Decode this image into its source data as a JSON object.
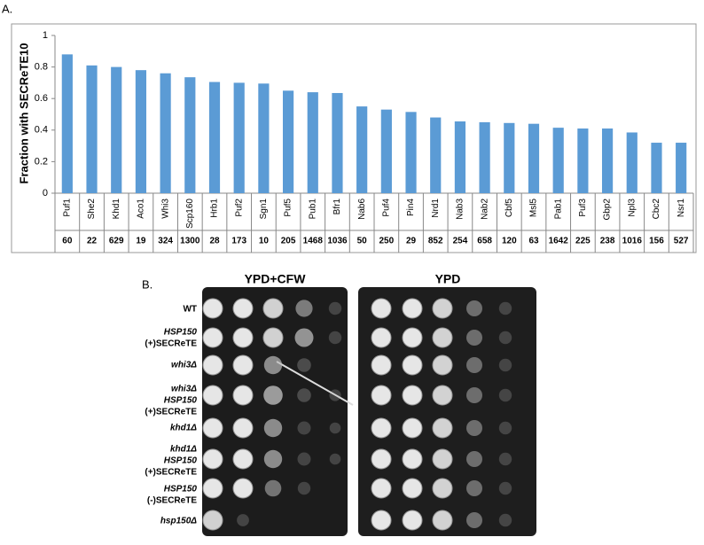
{
  "panel_a_label": "A.",
  "chart_data": {
    "type": "bar",
    "y_label": "Fraction with SECReTE10",
    "categories": [
      "Puf1",
      "She2",
      "Khd1",
      "Aco1",
      "Whi3",
      "Scp160",
      "Hrb1",
      "Puf2",
      "Sgn1",
      "Puf5",
      "Pub1",
      "Bfr1",
      "Nab6",
      "Puf4",
      "Pin4",
      "Nrd1",
      "Nab3",
      "Nab2",
      "Cbf5",
      "Msl5",
      "Pab1",
      "Puf3",
      "Gbp2",
      "Npl3",
      "Cbc2",
      "Nsr1"
    ],
    "values": [
      0.88,
      0.81,
      0.8,
      0.78,
      0.76,
      0.735,
      0.705,
      0.7,
      0.695,
      0.65,
      0.64,
      0.635,
      0.55,
      0.53,
      0.515,
      0.48,
      0.455,
      0.45,
      0.445,
      0.44,
      0.415,
      0.41,
      0.41,
      0.385,
      0.32,
      0.32
    ],
    "counts": [
      60,
      22,
      629,
      19,
      324,
      1300,
      28,
      173,
      10,
      205,
      1468,
      1036,
      50,
      250,
      29,
      852,
      254,
      658,
      120,
      63,
      1642,
      225,
      238,
      1016,
      156,
      527
    ],
    "color": "#5b9bd5",
    "ylim": [
      0,
      1
    ],
    "yticks": [
      0,
      0.2,
      0.4,
      0.6,
      0.8,
      1
    ],
    "grid": false
  },
  "panel_b": {
    "label": "B.",
    "plates": [
      "YPD+CFW",
      "YPD"
    ],
    "strains": [
      [
        "WT"
      ],
      [
        "HSP150",
        "(+)SECReTE"
      ],
      [
        "whi3Δ"
      ],
      [
        "whi3Δ",
        "HSP150",
        "(+)SECReTE"
      ],
      [
        "khd1Δ"
      ],
      [
        "khd1Δ",
        "HSP150",
        "(+)SECReTE"
      ],
      [
        "HSP150",
        "(-)SECReTE"
      ],
      [
        "hsp150Δ"
      ]
    ]
  }
}
